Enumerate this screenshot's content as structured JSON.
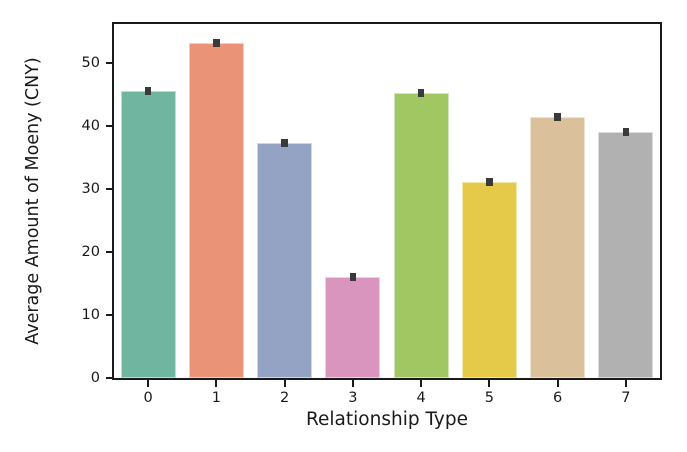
{
  "chart_data": {
    "type": "bar",
    "title": "",
    "xlabel": "Relationship Type",
    "ylabel": "Average Amount of Moeny (CNY)",
    "categories": [
      "0",
      "1",
      "2",
      "3",
      "4",
      "5",
      "6",
      "7"
    ],
    "values": [
      45.5,
      53.2,
      37.3,
      16.0,
      45.2,
      31.1,
      41.4,
      39.0
    ],
    "errors": [
      0.5,
      0.6,
      0.5,
      0.4,
      0.5,
      0.4,
      0.5,
      0.4
    ],
    "bar_colors": [
      "#6fb5a0",
      "#ea9376",
      "#94a2c3",
      "#d995bd",
      "#a1c763",
      "#e5c948",
      "#dac19b",
      "#b1b1b1"
    ],
    "error_bar_color": "#3a3a3a",
    "yticks": [
      0,
      10,
      20,
      30,
      40,
      50
    ],
    "ylim": [
      0,
      56.2
    ],
    "grid": false,
    "legend": null,
    "axis_color": "#1a1a1a"
  }
}
